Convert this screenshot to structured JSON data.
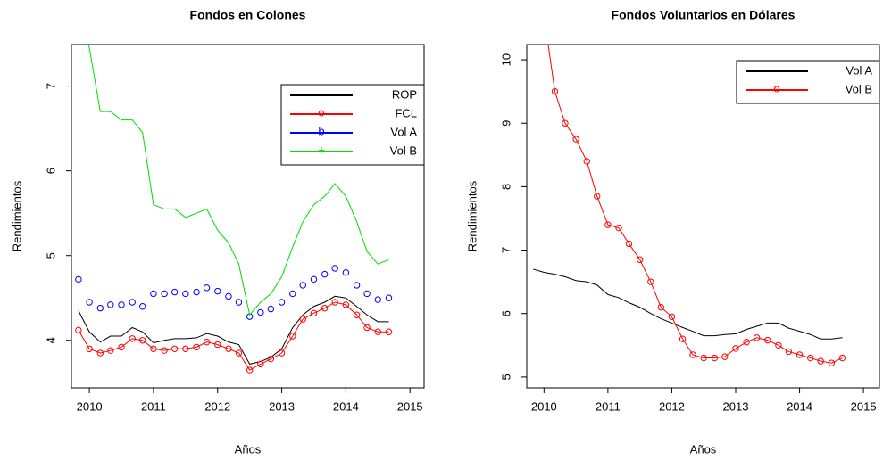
{
  "chart_data": [
    {
      "type": "line",
      "title": "Fondos en Colones",
      "xlabel": "Años",
      "ylabel": "Rendimientos",
      "x": [
        2009.83,
        2010.0,
        2010.17,
        2010.33,
        2010.5,
        2010.67,
        2010.83,
        2011.0,
        2011.17,
        2011.33,
        2011.5,
        2011.67,
        2011.83,
        2012.0,
        2012.17,
        2012.33,
        2012.5,
        2012.67,
        2012.83,
        2013.0,
        2013.17,
        2013.33,
        2013.5,
        2013.67,
        2013.83,
        2014.0,
        2014.17,
        2014.33,
        2014.5,
        2014.67
      ],
      "xlim": [
        2009.72,
        2015.22
      ],
      "xticks": [
        2010,
        2011,
        2012,
        2013,
        2014,
        2015
      ],
      "ylim": [
        3.44,
        7.49
      ],
      "yticks": [
        4,
        5,
        6,
        7
      ],
      "legend": "topright",
      "series": [
        {
          "name": "ROP",
          "color": "#000000",
          "line": true,
          "points": false,
          "values": [
            4.35,
            4.1,
            3.98,
            4.05,
            4.05,
            4.15,
            4.1,
            3.97,
            4.0,
            4.02,
            4.02,
            4.03,
            4.08,
            4.05,
            3.98,
            3.95,
            3.72,
            3.75,
            3.8,
            3.9,
            4.15,
            4.3,
            4.4,
            4.45,
            4.52,
            4.5,
            4.4,
            4.3,
            4.22,
            4.22
          ]
        },
        {
          "name": "FCL",
          "legend_symbol": "o",
          "color": "#ff0000",
          "line": true,
          "points": true,
          "values": [
            4.12,
            3.9,
            3.85,
            3.88,
            3.92,
            4.02,
            4.0,
            3.9,
            3.88,
            3.9,
            3.9,
            3.92,
            3.98,
            3.95,
            3.9,
            3.85,
            3.65,
            3.72,
            3.78,
            3.85,
            4.05,
            4.25,
            4.32,
            4.38,
            4.45,
            4.42,
            4.3,
            4.15,
            4.1,
            4.1
          ]
        },
        {
          "name": "Vol A",
          "legend_symbol": "b",
          "color": "#0000ff",
          "line": false,
          "points": true,
          "values": [
            4.72,
            4.45,
            4.38,
            4.42,
            4.42,
            4.45,
            4.4,
            4.55,
            4.55,
            4.57,
            4.55,
            4.57,
            4.62,
            4.58,
            4.52,
            4.45,
            4.28,
            4.33,
            4.37,
            4.45,
            4.55,
            4.65,
            4.72,
            4.78,
            4.85,
            4.8,
            4.65,
            4.55,
            4.48,
            4.5
          ]
        },
        {
          "name": "Vol B",
          "legend_symbol": "+",
          "color": "#00dd00",
          "line": true,
          "points": false,
          "values": [
            7.9,
            7.45,
            6.7,
            6.7,
            6.6,
            6.6,
            6.45,
            5.6,
            5.55,
            5.55,
            5.45,
            5.5,
            5.55,
            5.3,
            5.15,
            4.9,
            4.3,
            4.45,
            4.55,
            4.75,
            5.1,
            5.4,
            5.6,
            5.7,
            5.85,
            5.7,
            5.4,
            5.05,
            4.9,
            4.95
          ]
        }
      ]
    },
    {
      "type": "line",
      "title": "Fondos Voluntarios en Dólares",
      "xlabel": "Años",
      "ylabel": "Rendimientos",
      "x": [
        2009.83,
        2010.0,
        2010.17,
        2010.33,
        2010.5,
        2010.67,
        2010.83,
        2011.0,
        2011.17,
        2011.33,
        2011.5,
        2011.67,
        2011.83,
        2012.0,
        2012.17,
        2012.33,
        2012.5,
        2012.67,
        2012.83,
        2013.0,
        2013.17,
        2013.33,
        2013.5,
        2013.67,
        2013.83,
        2014.0,
        2014.17,
        2014.33,
        2014.5,
        2014.67
      ],
      "xlim": [
        2009.73,
        2015.25
      ],
      "xticks": [
        2010,
        2011,
        2012,
        2013,
        2014,
        2015
      ],
      "ylim": [
        4.83,
        10.24
      ],
      "yticks": [
        5,
        6,
        7,
        8,
        9,
        10
      ],
      "legend": "topright",
      "series": [
        {
          "name": "Vol A",
          "color": "#000000",
          "line": true,
          "points": false,
          "values": [
            6.7,
            6.65,
            6.62,
            6.58,
            6.52,
            6.5,
            6.45,
            6.3,
            6.25,
            6.17,
            6.1,
            6.0,
            5.92,
            5.85,
            5.78,
            5.72,
            5.65,
            5.65,
            5.67,
            5.68,
            5.75,
            5.8,
            5.85,
            5.85,
            5.77,
            5.72,
            5.67,
            5.6,
            5.6,
            5.62
          ]
        },
        {
          "name": "Vol B",
          "legend_symbol": "o",
          "color": "#ff0000",
          "line": true,
          "points": true,
          "values": [
            11.2,
            10.7,
            9.5,
            9.0,
            8.75,
            8.4,
            7.85,
            7.4,
            7.35,
            7.1,
            6.85,
            6.5,
            6.1,
            5.95,
            5.6,
            5.35,
            5.3,
            5.3,
            5.32,
            5.45,
            5.55,
            5.62,
            5.58,
            5.5,
            5.4,
            5.35,
            5.3,
            5.25,
            5.22,
            5.3
          ]
        }
      ]
    }
  ]
}
